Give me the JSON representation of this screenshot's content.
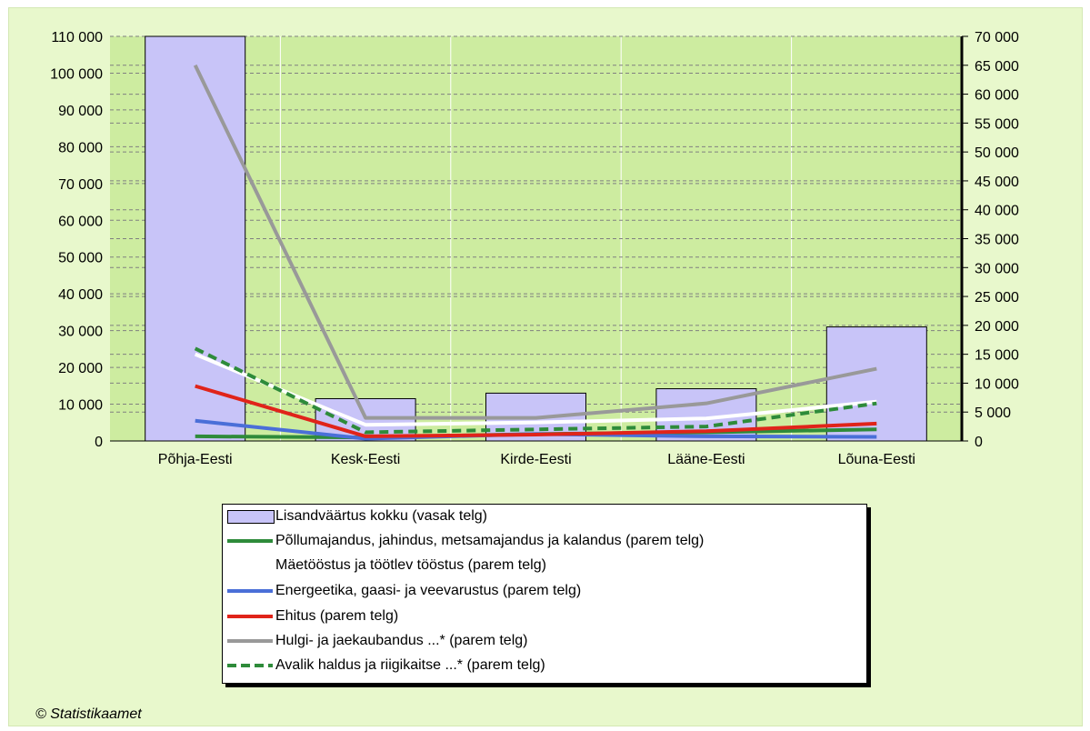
{
  "chart_data": {
    "type": "bar",
    "categories": [
      "Põhja-Eesti",
      "Kesk-Eesti",
      "Kirde-Eesti",
      "Lääne-Eesti",
      "Lõuna-Eesti"
    ],
    "left_axis": {
      "ylim": [
        0,
        110000
      ],
      "ticks": [
        "0",
        "10 000",
        "20 000",
        "30 000",
        "40 000",
        "50 000",
        "60 000",
        "70 000",
        "80 000",
        "90 000",
        "100 000",
        "110 000"
      ]
    },
    "right_axis": {
      "ylim": [
        0,
        70000
      ],
      "ticks": [
        "0",
        "5 000",
        "10 000",
        "15 000",
        "20 000",
        "25 000",
        "30 000",
        "35 000",
        "40 000",
        "45 000",
        "50 000",
        "55 000",
        "60 000",
        "65 000",
        "70 000"
      ]
    },
    "bar_series": {
      "name": "Lisandväärtus kokku (vasak telg)",
      "color": "#c8c4f8",
      "values": [
        110000,
        11500,
        13000,
        14200,
        31000
      ]
    },
    "line_series": [
      {
        "name": "Põllumajandus, jahindus, metsamajandus ja kalandus (parem telg)",
        "color": "#2e8b3a",
        "style": "solid",
        "values": [
          800,
          600,
          1200,
          1500,
          2000
        ]
      },
      {
        "name": "Mäetööstus ja töötlev tööstus (parem telg)",
        "color": "#ffffff",
        "style": "solid",
        "values": [
          15000,
          2800,
          3200,
          3900,
          6800
        ]
      },
      {
        "name": "Energeetika, gaasi- ja veevarustus (parem telg)",
        "color": "#4a6fd8",
        "style": "solid",
        "values": [
          3500,
          400,
          1200,
          800,
          700
        ]
      },
      {
        "name": "Ehitus (parem telg)",
        "color": "#e0241a",
        "style": "solid",
        "values": [
          9500,
          800,
          1100,
          1700,
          3000
        ]
      },
      {
        "name": "Hulgi- ja jaekaubandus ...* (parem telg)",
        "color": "#999999",
        "style": "solid",
        "values": [
          65000,
          4000,
          4000,
          6500,
          12500
        ]
      },
      {
        "name": "Avalik haldus ja riigikaitse ...* (parem telg)",
        "color": "#2e8b3a",
        "style": "dashed",
        "values": [
          16000,
          1500,
          2000,
          2500,
          6500
        ]
      }
    ],
    "plot_background": "#cdeca0",
    "grid": true,
    "legend_position": "bottom"
  },
  "copyright": "© Statistikaamet"
}
